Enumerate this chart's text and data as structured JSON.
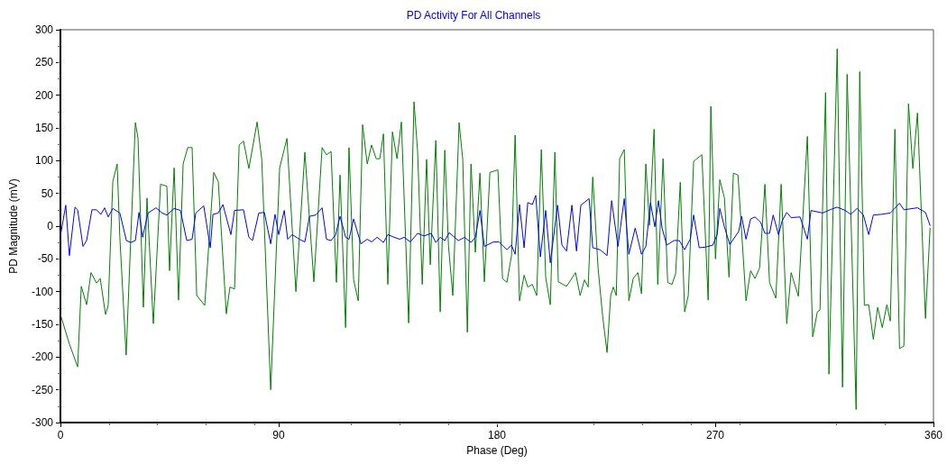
{
  "chart_data": {
    "type": "line",
    "title": "PD Activity For All Channels",
    "xlabel": "Phase (Deg)",
    "ylabel": "PD Magnitude (mV)",
    "xlim": [
      0,
      360
    ],
    "xticks": [
      0,
      90,
      180,
      270,
      360
    ],
    "ylim": [
      -300,
      300
    ],
    "yticks": [
      -300,
      -250,
      -200,
      -150,
      -100,
      -50,
      0,
      50,
      100,
      150,
      200,
      250,
      300
    ],
    "grid": false,
    "legend": false,
    "marker": "none",
    "line_style": "solid",
    "series": [
      {
        "color": "#008000",
        "x": [
          0,
          3.7,
          7.1,
          8.6,
          10.8,
          12.6,
          14.9,
          16.4,
          18.6,
          19.7,
          21.6,
          23.4,
          24.5,
          27.1,
          30.9,
          32,
          34.2,
          35.7,
          38.3,
          41.3,
          43.9,
          45,
          46.9,
          48.7,
          50.6,
          52.5,
          54.3,
          56.2,
          59.5,
          63.2,
          65.1,
          68.4,
          69.9,
          71.8,
          73.7,
          75.5,
          77.7,
          81.1,
          83,
          86.7,
          90.4,
          93.4,
          97.1,
          100.8,
          104.5,
          107.9,
          109.7,
          111.6,
          113.8,
          115.3,
          117.6,
          119,
          120.9,
          122.8,
          124.6,
          126.5,
          128.3,
          130.2,
          131.7,
          133.2,
          135,
          136.9,
          138.8,
          140.6,
          143.6,
          145.8,
          147.3,
          149.2,
          151,
          152.5,
          154.8,
          156.6,
          158.5,
          160,
          161.8,
          164.4,
          165.9,
          167.8,
          169.3,
          171.1,
          173,
          174.8,
          177.1,
          180.4,
          182.3,
          184.1,
          186,
          187.5,
          189.3,
          191.2,
          192.7,
          194.6,
          196.4,
          198.3,
          200.1,
          202,
          203.9,
          205.3,
          208.7,
          212.4,
          214.3,
          216.1,
          217.6,
          219.5,
          221.7,
          223.6,
          225.4,
          226.9,
          228,
          229.2,
          230.6,
          232.5,
          234.4,
          236.2,
          238.1,
          239.6,
          241.4,
          242.9,
          244.8,
          246.3,
          248.5,
          250.4,
          252.2,
          253.7,
          255.6,
          257.4,
          258.9,
          261.1,
          264.5,
          267.1,
          268.2,
          270.1,
          271.9,
          273.8,
          275.7,
          277.5,
          279.4,
          282.7,
          284.6,
          286.4,
          288.3,
          290.5,
          292.4,
          295,
          297.2,
          299.5,
          301.3,
          304.3,
          308,
          310.2,
          312.1,
          313.2,
          315.5,
          316.9,
          320.3,
          322.5,
          324.4,
          328.1,
          329.6,
          331.5,
          333.3,
          335.2,
          337,
          338.9,
          340.8,
          342.2,
          344.1,
          346,
          347.8,
          349.7,
          351.5,
          353.4,
          356.7,
          358.6
        ],
        "values": [
          -135,
          -180,
          -215,
          -92,
          -120,
          -71,
          -87,
          -80,
          -135,
          -121,
          68,
          95,
          -17,
          -197,
          158,
          134,
          -124,
          43,
          -149,
          64,
          61,
          -68,
          89,
          -113,
          95,
          120,
          120,
          -106,
          -121,
          82,
          68,
          -134,
          -93,
          -96,
          124,
          130,
          88,
          159,
          103,
          -250,
          89,
          134,
          -100,
          113,
          -85,
          120,
          109,
          114,
          -86,
          78,
          -155,
          120,
          -82,
          -114,
          155,
          95,
          124,
          103,
          103,
          141,
          -89,
          144,
          103,
          159,
          -148,
          190,
          113,
          -89,
          102,
          -59,
          131,
          -131,
          116,
          -29,
          -106,
          158,
          102,
          -162,
          95,
          -40,
          81,
          -85,
          82,
          86,
          -80,
          -86,
          -45,
          139,
          -114,
          -75,
          -93,
          -89,
          -106,
          117,
          -78,
          -120,
          113,
          -85,
          -92,
          -71,
          -106,
          -82,
          -93,
          75,
          -64,
          -138,
          -193,
          -106,
          -93,
          -106,
          103,
          117,
          -114,
          -80,
          -71,
          -103,
          95,
          1,
          148,
          -89,
          103,
          -86,
          -89,
          -72,
          67,
          -131,
          -106,
          99,
          109,
          -113,
          183,
          -50,
          71,
          43,
          -78,
          81,
          78,
          -114,
          -68,
          -80,
          -64,
          64,
          -86,
          -110,
          64,
          -149,
          -71,
          -107,
          137,
          -169,
          -131,
          -128,
          204,
          -226,
          271,
          -246,
          232,
          -280,
          236,
          -121,
          -120,
          -173,
          -124,
          -155,
          -120,
          -145,
          148,
          -187,
          -183,
          187,
          88,
          173,
          -141,
          -3
        ]
      },
      {
        "color": "#0000ff",
        "x": [
          0,
          2.2,
          3.7,
          6,
          7.1,
          9.3,
          10.8,
          13,
          14.9,
          16.7,
          18.2,
          19.7,
          21.6,
          24.5,
          27.2,
          29,
          30.9,
          32.4,
          33.9,
          36.1,
          39.4,
          42,
          43.9,
          46.9,
          49.5,
          52.1,
          54.3,
          55.8,
          59.1,
          61.8,
          62.9,
          65.1,
          67,
          70.3,
          71.8,
          75.5,
          77.7,
          79.2,
          81.8,
          84.1,
          86.7,
          88.5,
          90,
          92.3,
          93.7,
          95.6,
          99,
          100.8,
          102.7,
          105.3,
          107.9,
          109.7,
          111.6,
          113.5,
          115.3,
          117.6,
          119,
          120.9,
          123.9,
          126.5,
          128.3,
          130.6,
          133.2,
          135,
          137.6,
          139.9,
          141.7,
          144.3,
          147.3,
          149.9,
          152.9,
          154.8,
          156.6,
          158.5,
          160.3,
          164.1,
          166.7,
          169.3,
          171.1,
          173,
          174.8,
          178.6,
          180.8,
          184.1,
          186,
          187.5,
          189.3,
          191.2,
          192.7,
          194.6,
          196,
          197.9,
          200.1,
          202,
          205,
          206.8,
          208.7,
          210.9,
          212.8,
          214.6,
          218,
          219.5,
          222.5,
          225.4,
          227.3,
          229.9,
          232.5,
          234.4,
          237,
          239.6,
          241.4,
          243.3,
          245.1,
          246.6,
          248.1,
          250,
          253,
          255.2,
          257.4,
          259.7,
          261.1,
          263.4,
          266,
          269,
          270.8,
          271.9,
          273.8,
          276,
          279.7,
          280.9,
          282.7,
          284.6,
          286.4,
          288.7,
          290.5,
          292.4,
          293.9,
          296.1,
          297.6,
          299.5,
          301.3,
          305,
          308,
          309.5,
          314.3,
          317.3,
          320.3,
          323.6,
          325.9,
          328.5,
          331.1,
          333.3,
          335.2,
          338.5,
          342.2,
          346,
          347.8,
          353.4,
          356.7,
          358.6
        ],
        "values": [
          -15,
          32,
          -45,
          29,
          25,
          -31,
          -22,
          25,
          25,
          18,
          28,
          14,
          27,
          20,
          -22,
          -25,
          -22,
          21,
          -17,
          20,
          28,
          20,
          17,
          27,
          24,
          -22,
          -20,
          20,
          31,
          -33,
          18,
          20,
          33,
          -13,
          24,
          25,
          -17,
          -22,
          20,
          21,
          -27,
          18,
          -13,
          24,
          -20,
          -13,
          -21,
          -24,
          15,
          17,
          28,
          -20,
          -22,
          -13,
          15,
          -17,
          -20,
          11,
          -27,
          -20,
          -24,
          -17,
          -25,
          -13,
          -17,
          -20,
          -17,
          -24,
          -11,
          -15,
          -11,
          -25,
          -17,
          -22,
          -10,
          -22,
          -17,
          -25,
          -17,
          24,
          -31,
          -24,
          -24,
          -36,
          -29,
          -43,
          33,
          -33,
          36,
          33,
          47,
          -47,
          24,
          -56,
          32,
          -29,
          -38,
          32,
          -38,
          32,
          42,
          -33,
          -36,
          -45,
          39,
          -31,
          42,
          -43,
          -3,
          -43,
          -31,
          36,
          -1,
          39,
          -3,
          -29,
          -22,
          -22,
          -36,
          -20,
          17,
          -33,
          -32,
          -29,
          -13,
          27,
          -1,
          -28,
          -8,
          15,
          -20,
          11,
          14,
          6,
          -11,
          -11,
          17,
          -13,
          8,
          21,
          13,
          14,
          -20,
          24,
          20,
          25,
          29,
          24,
          18,
          27,
          17,
          -13,
          17,
          18,
          20,
          35,
          25,
          28,
          21,
          1
        ]
      }
    ]
  }
}
